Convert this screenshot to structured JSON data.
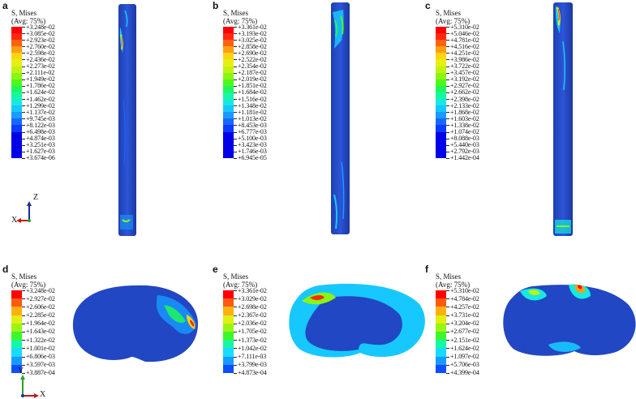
{
  "legend_title": "S, Mises",
  "legend_subtitle": "(Avg: 75%)",
  "colors": [
    "#0000e8",
    "#0b3bff",
    "#1868ff",
    "#179bff",
    "#17c8ff",
    "#17e9e2",
    "#16f7a3",
    "#1ef75b",
    "#4ff71b",
    "#8af512",
    "#bff313",
    "#e7ee12",
    "#ffd412",
    "#ff9e10",
    "#ff6010",
    "#ff2710",
    "#ff0000"
  ],
  "colors_small": [
    "#0000e8",
    "#0d4fff",
    "#179bff",
    "#17dbff",
    "#16f7a3",
    "#3df72a",
    "#9bf513",
    "#e1ef12",
    "#ffb011",
    "#ff5a10",
    "#ff0000"
  ],
  "axes": {
    "top": {
      "vertical": "Z",
      "horizontal": "X"
    },
    "bottom": {
      "vertical": "Y",
      "horizontal": "X"
    }
  },
  "panels": [
    {
      "label": "a",
      "values": [
        "+3.248e-02",
        "+3.085e-02",
        "+2.923e-02",
        "+2.760e-02",
        "+2.598e-02",
        "+2.436e-02",
        "+2.273e-02",
        "+2.111e-02",
        "+1.949e-02",
        "+1.786e-02",
        "+1.624e-02",
        "+1.462e-02",
        "+1.299e-02",
        "+1.137e-02",
        "+9.745e-03",
        "+8.122e-03",
        "+6.498e-03",
        "+4.874e-03",
        "+3.251e-03",
        "+1.627e-03",
        "+3.674e-06"
      ]
    },
    {
      "label": "b",
      "values": [
        "+3.361e-02",
        "+3.193e-02",
        "+3.025e-02",
        "+2.858e-02",
        "+2.690e-02",
        "+2.522e-02",
        "+2.354e-02",
        "+2.187e-02",
        "+2.019e-02",
        "+1.851e-02",
        "+1.684e-02",
        "+1.516e-02",
        "+1.348e-02",
        "+1.181e-02",
        "+1.013e-02",
        "+8.453e-03",
        "+6.777e-03",
        "+5.100e-03",
        "+3.423e-03",
        "+1.746e-03",
        "+6.945e-05"
      ]
    },
    {
      "label": "c",
      "values": [
        "+5.310e-02",
        "+5.046e-02",
        "+4.781e-02",
        "+4.516e-02",
        "+4.251e-02",
        "+3.986e-02",
        "+3.722e-02",
        "+3.457e-02",
        "+3.192e-02",
        "+2.927e-02",
        "+2.662e-02",
        "+2.398e-02",
        "+2.133e-02",
        "+1.868e-02",
        "+1.603e-02",
        "+1.338e-02",
        "+1.074e-02",
        "+8.088e-03",
        "+5.440e-03",
        "+2.792e-03",
        "+1.442e-04"
      ]
    },
    {
      "label": "d",
      "values": [
        "+3.248e-02",
        "+2.927e-02",
        "+2.606e-02",
        "+2.285e-02",
        "+1.964e-02",
        "+1.643e-02",
        "+1.322e-02",
        "+1.001e-02",
        "+6.806e-03",
        "+3.597e-03",
        "+3.887e-04"
      ]
    },
    {
      "label": "e",
      "values": [
        "+3.361e-02",
        "+3.029e-02",
        "+2.698e-02",
        "+2.367e-02",
        "+2.036e-02",
        "+1.705e-02",
        "+1.373e-02",
        "+1.042e-02",
        "+7.111e-03",
        "+3.799e-03",
        "+4.873e-04"
      ]
    },
    {
      "label": "f",
      "values": [
        "+5.310e-02",
        "+4.784e-02",
        "+4.257e-02",
        "+3.731e-02",
        "+3.204e-02",
        "+2.677e-02",
        "+2.151e-02",
        "+1.624e-02",
        "+1.097e-02",
        "+5.706e-03",
        "+4.399e-04"
      ]
    }
  ]
}
